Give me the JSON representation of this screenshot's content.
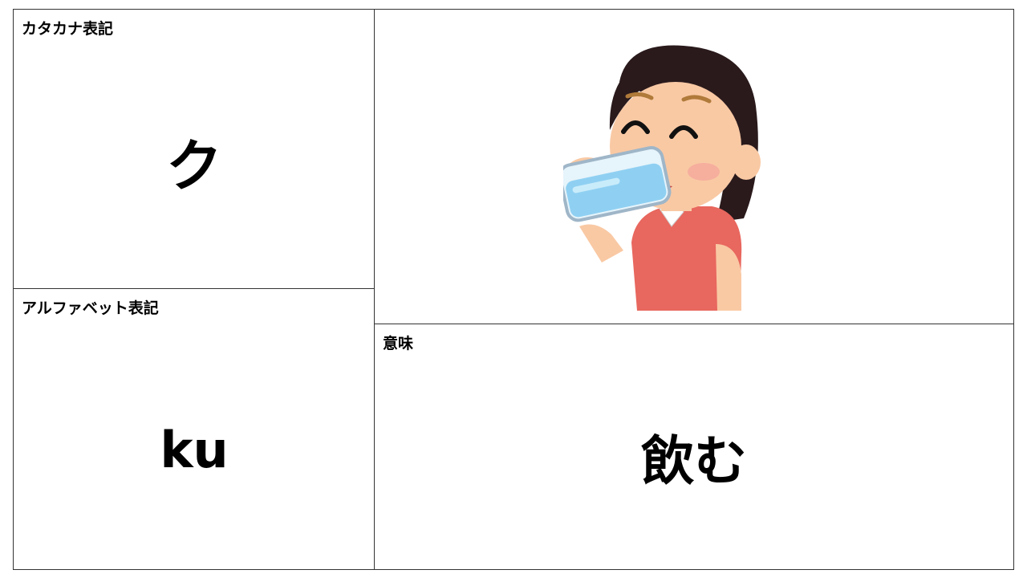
{
  "card": {
    "katakana_label": "カタカナ表記",
    "katakana_value": "ク",
    "alphabet_label": "アルファベット表記",
    "alphabet_value": "ku",
    "meaning_label": "意味",
    "meaning_value": "飲む"
  },
  "illustration": {
    "icon": "woman-drinking-water-icon"
  },
  "colors": {
    "border": "#333333",
    "shirt": "#e8675e",
    "skin": "#f9c9a4",
    "hair": "#2a1a1c",
    "water": "#8fd0f2"
  }
}
